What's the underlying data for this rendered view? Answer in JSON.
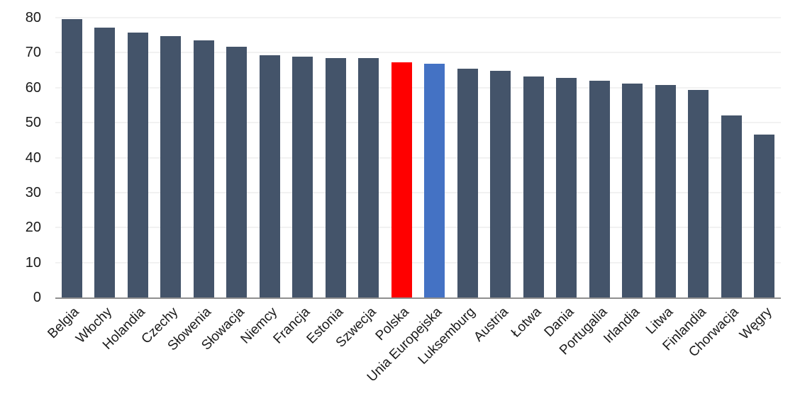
{
  "chart_data": {
    "type": "bar",
    "title": "",
    "xlabel": "",
    "ylabel": "",
    "legend": "none",
    "grid": true,
    "ylim": [
      0,
      80
    ],
    "yticks": [
      0,
      10,
      20,
      30,
      40,
      50,
      60,
      70,
      80
    ],
    "categories": [
      "Belgia",
      "Włochy",
      "Holandia",
      "Czechy",
      "Słowenia",
      "Słowacja",
      "Niemcy",
      "Francja",
      "Estonia",
      "Szwecja",
      "Polska",
      "Unia Europejska",
      "Luksemburg",
      "Austria",
      "Łotwa",
      "Dania",
      "Portugalia",
      "Irlandia",
      "Litwa",
      "Finlandia",
      "Chorwacja",
      "Węgry"
    ],
    "values": [
      79.5,
      77.1,
      75.8,
      74.7,
      73.5,
      71.8,
      69.2,
      68.9,
      68.5,
      68.5,
      67.3,
      66.8,
      65.5,
      64.9,
      63.1,
      62.7,
      61.9,
      61.1,
      60.8,
      59.4,
      52.0,
      46.6
    ],
    "default_bar_color": "#44546a",
    "highlighted_bars": [
      {
        "category": "Polska",
        "color": "#ff0000"
      },
      {
        "category": "Unia Europejska",
        "color": "#4472c4"
      }
    ],
    "gridline_color": "#f2f2f2",
    "baseline_color": "#8f8f8f",
    "axis_text_color": "#1a1a1a",
    "background_color": "#ffffff"
  }
}
